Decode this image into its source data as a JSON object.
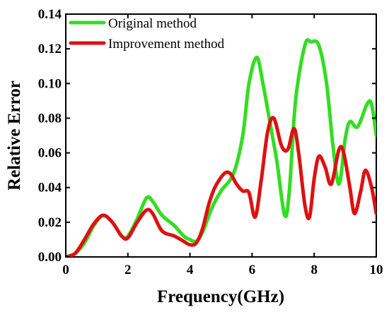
{
  "chart_data": {
    "type": "line",
    "xlabel": "Frequency(GHz)",
    "ylabel": "Relative Error",
    "xlim": [
      0,
      10
    ],
    "ylim": [
      0,
      0.14
    ],
    "x_ticks": [
      "0",
      "2",
      "4",
      "6",
      "8",
      "10"
    ],
    "y_ticks": [
      "0.00",
      "0.02",
      "0.04",
      "0.06",
      "0.08",
      "0.10",
      "0.12",
      "0.14"
    ],
    "grid": false,
    "legend_position": "top-left",
    "series": [
      {
        "name": "Original method",
        "color": "#33dd22",
        "points": [
          [
            0,
            0.0
          ],
          [
            0.3,
            0.002
          ],
          [
            0.6,
            0.008
          ],
          [
            0.9,
            0.018
          ],
          [
            1.2,
            0.024
          ],
          [
            1.5,
            0.02
          ],
          [
            1.8,
            0.012
          ],
          [
            2.0,
            0.012
          ],
          [
            2.3,
            0.022
          ],
          [
            2.6,
            0.034
          ],
          [
            2.8,
            0.032
          ],
          [
            3.1,
            0.024
          ],
          [
            3.5,
            0.018
          ],
          [
            3.8,
            0.012
          ],
          [
            4.0,
            0.01
          ],
          [
            4.2,
            0.009
          ],
          [
            4.4,
            0.014
          ],
          [
            4.7,
            0.028
          ],
          [
            5.0,
            0.038
          ],
          [
            5.4,
            0.048
          ],
          [
            5.7,
            0.07
          ],
          [
            5.9,
            0.1
          ],
          [
            6.15,
            0.115
          ],
          [
            6.35,
            0.1
          ],
          [
            6.6,
            0.075
          ],
          [
            6.8,
            0.055
          ],
          [
            7.05,
            0.024
          ],
          [
            7.2,
            0.038
          ],
          [
            7.4,
            0.09
          ],
          [
            7.7,
            0.122
          ],
          [
            7.9,
            0.124
          ],
          [
            8.15,
            0.122
          ],
          [
            8.4,
            0.1
          ],
          [
            8.6,
            0.065
          ],
          [
            8.8,
            0.042
          ],
          [
            9.0,
            0.068
          ],
          [
            9.15,
            0.078
          ],
          [
            9.4,
            0.075
          ],
          [
            9.7,
            0.088
          ],
          [
            9.85,
            0.088
          ],
          [
            10.0,
            0.07
          ]
        ]
      },
      {
        "name": "Improvement method",
        "color": "#dd1111",
        "points": [
          [
            0,
            0.0
          ],
          [
            0.3,
            0.002
          ],
          [
            0.6,
            0.01
          ],
          [
            0.9,
            0.019
          ],
          [
            1.2,
            0.024
          ],
          [
            1.5,
            0.02
          ],
          [
            1.8,
            0.012
          ],
          [
            2.0,
            0.011
          ],
          [
            2.3,
            0.02
          ],
          [
            2.6,
            0.027
          ],
          [
            2.8,
            0.025
          ],
          [
            3.1,
            0.015
          ],
          [
            3.5,
            0.012
          ],
          [
            3.8,
            0.009
          ],
          [
            4.0,
            0.007
          ],
          [
            4.2,
            0.008
          ],
          [
            4.4,
            0.016
          ],
          [
            4.6,
            0.03
          ],
          [
            4.8,
            0.04
          ],
          [
            5.1,
            0.048
          ],
          [
            5.3,
            0.048
          ],
          [
            5.5,
            0.042
          ],
          [
            5.7,
            0.038
          ],
          [
            5.9,
            0.037
          ],
          [
            6.1,
            0.023
          ],
          [
            6.3,
            0.045
          ],
          [
            6.5,
            0.072
          ],
          [
            6.7,
            0.08
          ],
          [
            6.95,
            0.064
          ],
          [
            7.15,
            0.062
          ],
          [
            7.35,
            0.074
          ],
          [
            7.5,
            0.06
          ],
          [
            7.7,
            0.03
          ],
          [
            7.85,
            0.023
          ],
          [
            8.0,
            0.045
          ],
          [
            8.15,
            0.058
          ],
          [
            8.35,
            0.052
          ],
          [
            8.55,
            0.042
          ],
          [
            8.8,
            0.062
          ],
          [
            8.95,
            0.06
          ],
          [
            9.15,
            0.04
          ],
          [
            9.3,
            0.025
          ],
          [
            9.5,
            0.038
          ],
          [
            9.65,
            0.05
          ],
          [
            9.85,
            0.04
          ],
          [
            10.0,
            0.025
          ]
        ]
      }
    ]
  }
}
